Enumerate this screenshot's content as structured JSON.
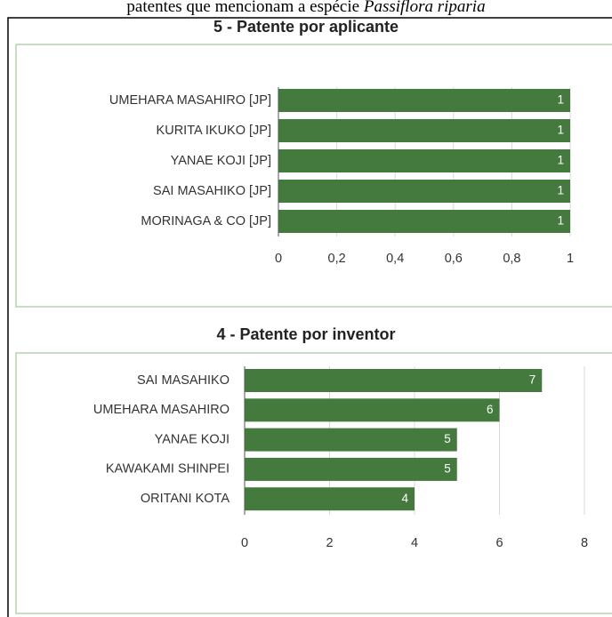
{
  "caption": {
    "text": "patentes que mencionam a espécie",
    "species": "Passiflora riparia"
  },
  "chart_data": [
    {
      "type": "barh",
      "title": "5 - Patente por aplicante",
      "categories": [
        "UMEHARA MASAHIRO [JP]",
        "KURITA IKUKO [JP]",
        "YANAE KOJI [JP]",
        "SAI MASAHIKO [JP]",
        "MORINAGA & CO [JP]"
      ],
      "values": [
        1,
        1,
        1,
        1,
        1
      ],
      "color": "#457a3e",
      "xlim": [
        0,
        1
      ],
      "xticks": [
        0,
        {
          "value": 0.2,
          "label": "0,2"
        },
        {
          "value": 0.4,
          "label": "0,4"
        },
        {
          "value": 0.6,
          "label": "0,6"
        },
        {
          "value": 0.8,
          "label": "0,8"
        },
        1
      ],
      "grid": true
    },
    {
      "type": "barh",
      "title": "4 - Patente por inventor",
      "categories": [
        "SAI MASAHIKO",
        "UMEHARA MASAHIRO",
        "YANAE KOJI",
        "KAWAKAMI SHINPEI",
        "ORITANI KOTA"
      ],
      "values": [
        7,
        6,
        5,
        5,
        4
      ],
      "color": "#457a3e",
      "xlim": [
        0,
        8
      ],
      "xticks": [
        0,
        2,
        4,
        6,
        8
      ],
      "grid": true
    }
  ]
}
